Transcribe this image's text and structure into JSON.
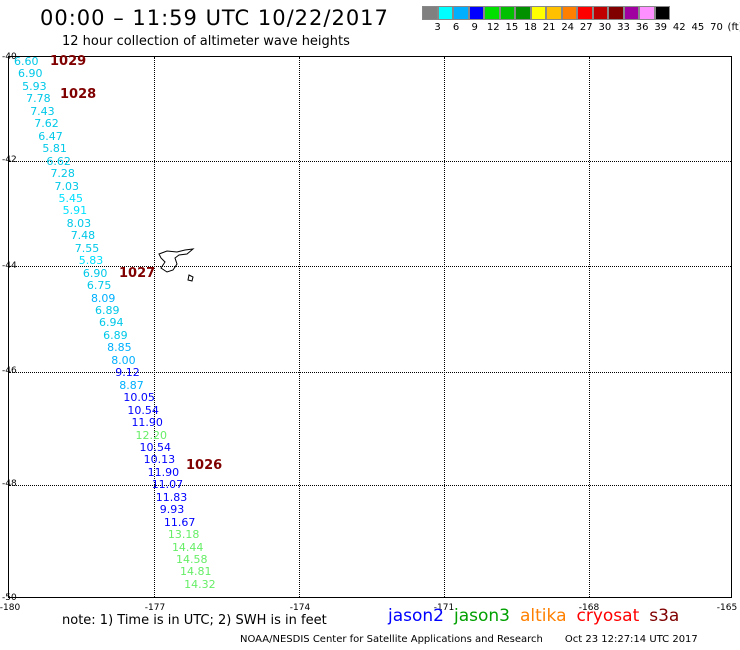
{
  "header": {
    "title": "00:00 – 11:59 UTC 10/22/2017",
    "subtitle": "12 hour collection of altimeter wave heights"
  },
  "legend": {
    "colors": [
      "#808080",
      "#00ffff",
      "#00b0ff",
      "#0000ff",
      "#00e000",
      "#00c000",
      "#009000",
      "#ffff00",
      "#ffc000",
      "#ff8000",
      "#ff0000",
      "#c00000",
      "#800000",
      "#a000a0",
      "#ff90ff",
      "#000000"
    ],
    "labels": [
      "3",
      "6",
      "9",
      "12",
      "15",
      "18",
      "21",
      "24",
      "27",
      "30",
      "33",
      "36",
      "39",
      "42",
      "45",
      "70",
      "(ft)"
    ]
  },
  "axes": {
    "lat_labels": [
      "-40",
      "-42",
      "-44",
      "-46",
      "-48",
      "-50"
    ],
    "lon_labels": [
      "-180",
      "-177",
      "-174",
      "-171",
      "-168",
      "-165"
    ]
  },
  "pressure_labels": [
    "1029",
    "1028",
    "1027",
    "1026"
  ],
  "readings": [
    "6.60",
    "6.90",
    "5.93",
    "7.78",
    "7.43",
    "7.62",
    "6.47",
    "5.81",
    "6.62",
    "7.28",
    "7.03",
    "5.45",
    "5.91",
    "8.03",
    "7.48",
    "7.55",
    "5.83",
    "6.90",
    "6.75",
    "8.09",
    "6.89",
    "6.94",
    "6.89",
    "8.85",
    "8.00",
    "9.12",
    "8.87",
    "10.05",
    "10.54",
    "11.90",
    "12.20",
    "10.54",
    "10.13",
    "11.90",
    "11.07",
    "11.83",
    "9.93",
    "11.67",
    "13.18",
    "14.44",
    "14.58",
    "14.81",
    "14.32"
  ],
  "reading_colors": [
    "#00c8e8",
    "#00c8e8",
    "#00c8e8",
    "#00c8e8",
    "#00c8e8",
    "#00c8e8",
    "#00c8e8",
    "#00c8e8",
    "#00c8e8",
    "#00c8e8",
    "#00c8e8",
    "#00e0ff",
    "#00e0ff",
    "#00c8e8",
    "#00c8e8",
    "#00c8e8",
    "#00e0ff",
    "#00c8e8",
    "#00c8e8",
    "#00b0ff",
    "#00c8e8",
    "#00c8e8",
    "#00c8e8",
    "#00b0ff",
    "#00b0ff",
    "#0000ff",
    "#00b0ff",
    "#0000ff",
    "#0000ff",
    "#0000ff",
    "#66ee66",
    "#0000ff",
    "#0000ff",
    "#0000ff",
    "#0000ff",
    "#0000ff",
    "#0000ff",
    "#0000ff",
    "#66ee66",
    "#66ee66",
    "#66ee66",
    "#66ee66",
    "#66ee66"
  ],
  "footer": {
    "note": "note: 1) Time is in UTC; 2) SWH is in feet",
    "satellites": [
      {
        "name": "jason2",
        "color": "#0000ff"
      },
      {
        "name": "jason3",
        "color": "#00a000"
      },
      {
        "name": "altika",
        "color": "#ff8000"
      },
      {
        "name": "cryosat",
        "color": "#ff0000"
      },
      {
        "name": "s3a",
        "color": "#800000"
      }
    ],
    "credit": "NOAA/NESDIS Center for Satellite Applications and Research",
    "timestamp": "Oct 23 12:27:14 UTC 2017"
  }
}
